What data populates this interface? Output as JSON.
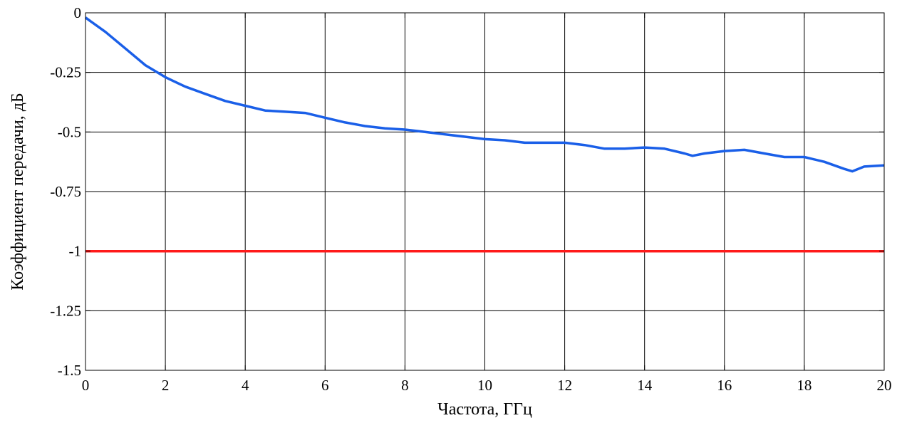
{
  "chart_data": {
    "type": "line",
    "title": "",
    "xlabel": "Частота, ГГц",
    "ylabel": "Коэффициент передачи, дБ",
    "xlim": [
      0,
      20
    ],
    "ylim": [
      -1.5,
      0
    ],
    "x_ticks": [
      0,
      2,
      4,
      6,
      8,
      10,
      12,
      14,
      16,
      18,
      20
    ],
    "x_tick_labels": [
      "0",
      "2",
      "4",
      "6",
      "8",
      "10",
      "12",
      "14",
      "16",
      "18",
      "20"
    ],
    "y_ticks": [
      0,
      -0.25,
      -0.5,
      -0.75,
      -1,
      -1.25,
      -1.5
    ],
    "y_tick_labels": [
      "0",
      "-0.25",
      "-0.5",
      "-0.75",
      "-1",
      "-1.25",
      "-1.5"
    ],
    "grid": true,
    "legend": "none",
    "series": [
      {
        "color": "#1a5fe8",
        "x": [
          0,
          0.5,
          1,
          1.5,
          2,
          2.5,
          3,
          3.5,
          4,
          4.5,
          5,
          5.5,
          6,
          6.5,
          7,
          7.5,
          8,
          8.5,
          9,
          9.5,
          10,
          10.5,
          11,
          11.5,
          12,
          12.5,
          13,
          13.5,
          14,
          14.5,
          15,
          15.2,
          15.5,
          16,
          16.5,
          17,
          17.5,
          18,
          18.5,
          19,
          19.2,
          19.5,
          20
        ],
        "y": [
          -0.02,
          -0.08,
          -0.15,
          -0.22,
          -0.27,
          -0.31,
          -0.34,
          -0.37,
          -0.39,
          -0.41,
          -0.415,
          -0.42,
          -0.44,
          -0.46,
          -0.475,
          -0.485,
          -0.49,
          -0.5,
          -0.51,
          -0.52,
          -0.53,
          -0.535,
          -0.545,
          -0.545,
          -0.545,
          -0.555,
          -0.57,
          -0.57,
          -0.565,
          -0.57,
          -0.59,
          -0.6,
          -0.59,
          -0.58,
          -0.575,
          -0.59,
          -0.605,
          -0.605,
          -0.625,
          -0.655,
          -0.665,
          -0.645,
          -0.64
        ]
      },
      {
        "color": "#ff1a1a",
        "x": [
          0,
          20
        ],
        "y": [
          -1,
          -1
        ]
      }
    ]
  }
}
